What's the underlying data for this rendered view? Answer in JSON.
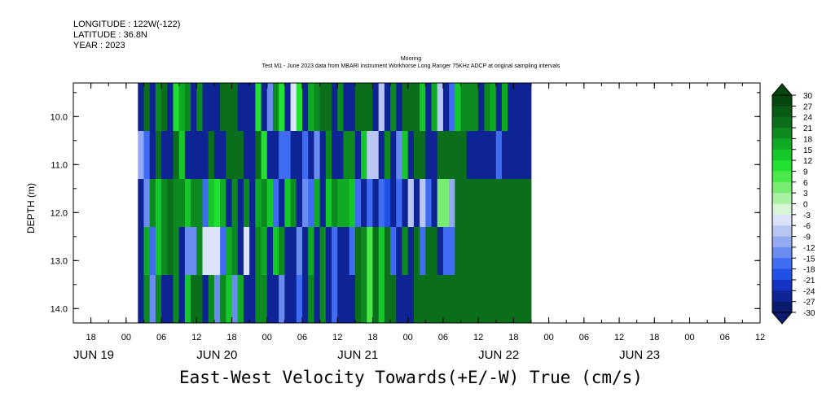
{
  "header": {
    "longitude": "LONGITUDE : 122W(-122)",
    "latitude": "LATITUDE : 36.8N",
    "year": "YEAR : 2023"
  },
  "chart_data": {
    "type": "heatmap",
    "title": "Mooring",
    "subtitle": "Test M1 - June 2023 data from MBARI instrument Workhorse Long Ranger 75KHz ADCP at original sampling intervals",
    "xlabel": "East-West Velocity Towards(+E/-W) True (cm/s)",
    "ylabel": "DEPTH (m)",
    "x_range_hours_since_jun19_00": [
      -9,
      108
    ],
    "data_start_hour": 2,
    "cell_hours": 1,
    "ylim": [
      14.3,
      9.3
    ],
    "depth_bands": [
      {
        "top": 9.3,
        "bottom": 10.3
      },
      {
        "top": 10.3,
        "bottom": 11.3
      },
      {
        "top": 11.3,
        "bottom": 12.3
      },
      {
        "top": 12.3,
        "bottom": 13.3
      },
      {
        "top": 13.3,
        "bottom": 14.3
      }
    ],
    "x_hour_ticks": [
      {
        "hour": -6,
        "label": "18"
      },
      {
        "hour": 0,
        "label": "00"
      },
      {
        "hour": 6,
        "label": "06"
      },
      {
        "hour": 12,
        "label": "12"
      },
      {
        "hour": 18,
        "label": "18"
      },
      {
        "hour": 24,
        "label": "00"
      },
      {
        "hour": 30,
        "label": "06"
      },
      {
        "hour": 36,
        "label": "12"
      },
      {
        "hour": 42,
        "label": "18"
      },
      {
        "hour": 48,
        "label": "00"
      },
      {
        "hour": 54,
        "label": "06"
      },
      {
        "hour": 60,
        "label": "12"
      },
      {
        "hour": 66,
        "label": "18"
      },
      {
        "hour": 72,
        "label": "00"
      },
      {
        "hour": 78,
        "label": "06"
      },
      {
        "hour": 84,
        "label": "12"
      },
      {
        "hour": 90,
        "label": "18"
      },
      {
        "hour": 96,
        "label": "00"
      },
      {
        "hour": 102,
        "label": "06"
      },
      {
        "hour": 108,
        "label": "12"
      }
    ],
    "x_day_labels": [
      {
        "hour": -9,
        "label": "JUN 19"
      },
      {
        "hour": 12,
        "label": "JUN 20"
      },
      {
        "hour": 36,
        "label": "JUN 21"
      },
      {
        "hour": 60,
        "label": "JUN 22"
      },
      {
        "hour": 84,
        "label": "JUN 23"
      }
    ],
    "y_ticks": [
      {
        "value": 10.0,
        "label": "10.0"
      },
      {
        "value": 11.0,
        "label": "11.0"
      },
      {
        "value": 12.0,
        "label": "12.0"
      },
      {
        "value": 13.0,
        "label": "13.0"
      },
      {
        "value": 14.0,
        "label": "14.0"
      }
    ],
    "colorbar": {
      "levels": [
        -30,
        -27,
        -24,
        -21,
        -18,
        -15,
        -12,
        -9,
        -6,
        -3,
        0,
        3,
        6,
        9,
        12,
        15,
        18,
        21,
        24,
        27,
        30
      ],
      "labels": [
        "30",
        "27",
        "24",
        "21",
        "18",
        "15",
        "12",
        "9",
        "6",
        "3",
        "0",
        "-3",
        "-6",
        "-9",
        "-12",
        "-15",
        "-18",
        "-21",
        "-24",
        "-27",
        "-30"
      ],
      "colors": [
        "#0a1a6e",
        "#0e2494",
        "#1433c2",
        "#2150e6",
        "#3f6cf2",
        "#6a8cf0",
        "#94aaf0",
        "#b9c6f2",
        "#dce2f7",
        "#d8f5d6",
        "#a8f0a2",
        "#78ec70",
        "#4be84a",
        "#22e030",
        "#15c829",
        "#10aa25",
        "#0c8a1f",
        "#0a6e1a",
        "#085a15",
        "#064710"
      ]
    },
    "values": [
      [
        -25,
        22,
        -25,
        18,
        22,
        -25,
        10,
        15,
        20,
        -25,
        20,
        -25,
        -25,
        -25,
        23,
        23,
        23,
        -25,
        -25,
        -25,
        10,
        -25,
        -15,
        20,
        10,
        -25,
        -6,
        10,
        -25,
        16,
        20,
        23,
        23,
        -25,
        20,
        -25,
        -25,
        23,
        23,
        23,
        -25,
        -8,
        -25,
        20,
        -25,
        23,
        23,
        23,
        12,
        -25,
        15,
        -8,
        -25,
        -18,
        14,
        20,
        20,
        20,
        -25,
        20,
        15,
        -25,
        15,
        -25,
        -25,
        -25,
        -25
      ],
      [
        -12,
        -18,
        -25,
        23,
        -25,
        -25,
        23,
        12,
        -25,
        -25,
        -25,
        -25,
        23,
        -25,
        -25,
        23,
        23,
        23,
        -25,
        -25,
        23,
        10,
        -25,
        -25,
        -18,
        -18,
        -25,
        -25,
        -18,
        -25,
        -15,
        -25,
        20,
        -25,
        -25,
        18,
        20,
        -25,
        14,
        -8,
        -8,
        -25,
        20,
        -25,
        -15,
        14,
        -25,
        23,
        23,
        -25,
        -25,
        23,
        23,
        23,
        23,
        23,
        -25,
        -25,
        -25,
        -25,
        -25,
        -18,
        -25,
        -25,
        -25,
        -25,
        -25
      ],
      [
        -25,
        -15,
        18,
        12,
        20,
        23,
        20,
        18,
        14,
        20,
        20,
        -18,
        12,
        10,
        16,
        -25,
        20,
        -25,
        18,
        -25,
        16,
        20,
        14,
        -18,
        -25,
        14,
        20,
        -25,
        -15,
        -18,
        15,
        -25,
        14,
        20,
        16,
        16,
        14,
        -18,
        -25,
        -18,
        -25,
        -18,
        -21,
        -25,
        -18,
        -25,
        -8,
        -25,
        -8,
        -18,
        -25,
        4,
        4,
        -12,
        23,
        23,
        23,
        23,
        23,
        23,
        23,
        23,
        23,
        23,
        23,
        23,
        23
      ],
      [
        -25,
        15,
        -18,
        12,
        20,
        23,
        20,
        -25,
        -15,
        -15,
        20,
        -6,
        -6,
        -6,
        -18,
        16,
        20,
        -25,
        -6,
        -25,
        20,
        16,
        -25,
        14,
        18,
        -25,
        -25,
        -15,
        -25,
        16,
        -25,
        18,
        -25,
        -18,
        -25,
        -25,
        -18,
        23,
        18,
        8,
        23,
        14,
        23,
        -18,
        -25,
        18,
        -25,
        23,
        -18,
        23,
        23,
        -25,
        -18,
        -18,
        23,
        23,
        23,
        23,
        23,
        23,
        23,
        23,
        23,
        23,
        23,
        23,
        23
      ],
      [
        -25,
        18,
        -15,
        20,
        -25,
        -25,
        18,
        -25,
        12,
        23,
        23,
        -25,
        20,
        -15,
        20,
        14,
        -15,
        15,
        -25,
        -25,
        18,
        20,
        -25,
        -25,
        -15,
        -25,
        -25,
        -18,
        -25,
        20,
        -25,
        18,
        -25,
        -18,
        -25,
        -25,
        -25,
        23,
        18,
        8,
        23,
        14,
        23,
        23,
        -25,
        -25,
        -25,
        23,
        23,
        23,
        23,
        23,
        23,
        23,
        23,
        23,
        23,
        23,
        23,
        23,
        23,
        23,
        23,
        23,
        23,
        23,
        23
      ]
    ]
  }
}
